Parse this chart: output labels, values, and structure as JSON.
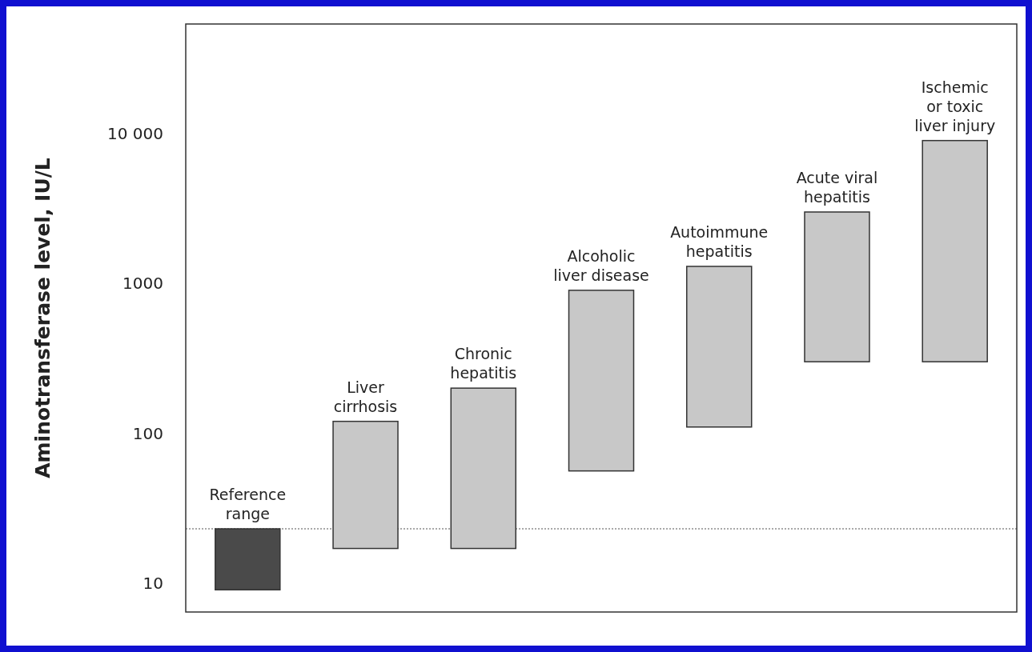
{
  "chart_data": {
    "type": "bar",
    "ylabel": "Aminotransferase level, IU/L",
    "categories": [
      "Reference\nrange",
      "Liver\ncirrhosis",
      "Chronic\nhepatitis",
      "Alcoholic\nliver disease",
      "Autoimmune\nhepatitis",
      "Acute viral\nhepatitis",
      "Ischemic\nor toxic\nliver injury"
    ],
    "base": [
      9,
      17,
      17,
      56,
      110,
      300,
      300
    ],
    "values": [
      14,
      103,
      183,
      844,
      1190,
      2700,
      8700
    ],
    "colors": [
      "#4a4a4a",
      "#c8c8c8",
      "#c8c8c8",
      "#c8c8c8",
      "#c8c8c8",
      "#c8c8c8",
      "#c8c8c8"
    ],
    "log": true,
    "ylim": [
      6.4,
      54000
    ],
    "yticks": [
      10,
      100,
      1000,
      {
        "value": 10000,
        "label": "10 000"
      }
    ],
    "ref_lines": [
      {
        "axis": "y",
        "value": 23,
        "line_style": "dotted",
        "color": "#555555"
      }
    ],
    "tick_labels": "y"
  }
}
